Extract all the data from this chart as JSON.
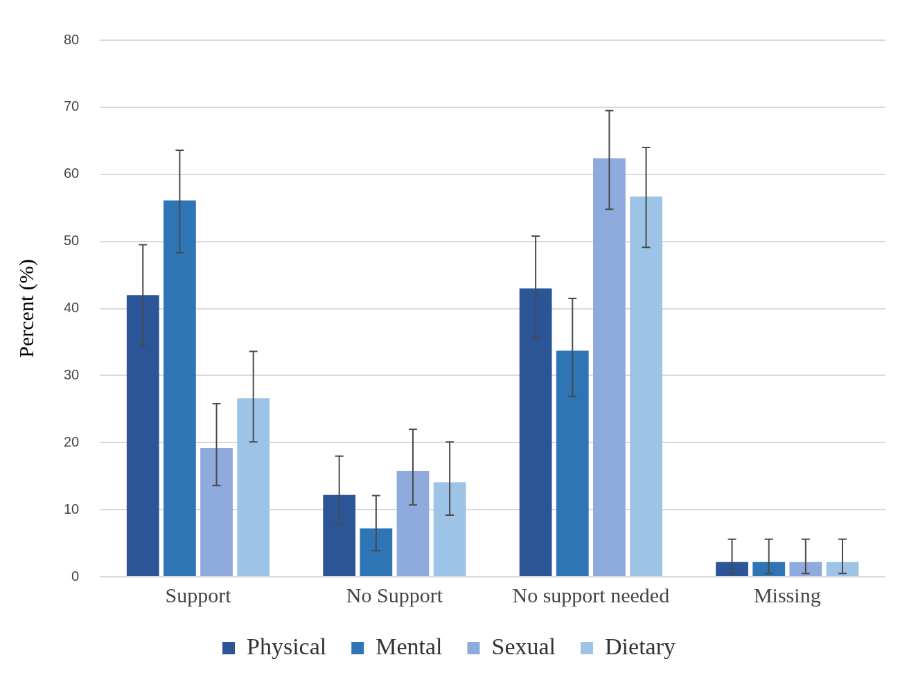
{
  "chart_data": {
    "type": "bar",
    "ylabel": "Percent (%)",
    "categories": [
      "Support",
      "No Support",
      "No support needed",
      "Missing"
    ],
    "series": [
      {
        "name": "Physical",
        "color": "#2b5597",
        "values": [
          42,
          12.2,
          43,
          2.2
        ],
        "errors": [
          [
            34.5,
            49.5
          ],
          [
            7.9,
            18
          ],
          [
            35.6,
            50.8
          ],
          [
            0.5,
            5.6
          ]
        ]
      },
      {
        "name": "Mental",
        "color": "#2e75b6",
        "values": [
          56.1,
          7.2,
          33.7,
          2.2
        ],
        "errors": [
          [
            48.3,
            63.6
          ],
          [
            3.9,
            12.1
          ],
          [
            26.9,
            41.5
          ],
          [
            0.5,
            5.6
          ]
        ]
      },
      {
        "name": "Sexual",
        "color": "#8faadc",
        "values": [
          19.2,
          15.8,
          62.4,
          2.2
        ],
        "errors": [
          [
            13.6,
            25.8
          ],
          [
            10.7,
            22
          ],
          [
            54.8,
            69.5
          ],
          [
            0.5,
            5.6
          ]
        ]
      },
      {
        "name": "Dietary",
        "color": "#9dc3e6",
        "values": [
          26.6,
          14.1,
          56.7,
          2.2
        ],
        "errors": [
          [
            20.1,
            33.6
          ],
          [
            9.2,
            20.1
          ],
          [
            49.1,
            64
          ],
          [
            0.5,
            5.6
          ]
        ]
      }
    ],
    "ylim": [
      0,
      80
    ],
    "yticks": [
      0,
      10,
      20,
      30,
      40,
      50,
      60,
      70,
      80
    ],
    "grid": "y",
    "legend": "bottom"
  }
}
